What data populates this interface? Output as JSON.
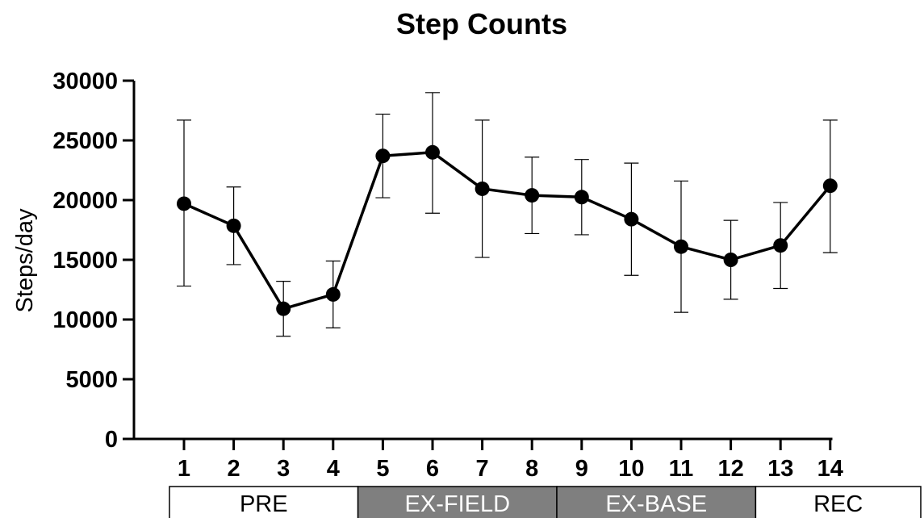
{
  "chart_data": {
    "type": "line",
    "title": "Step Counts",
    "xlabel": "",
    "ylabel": "Steps/day",
    "ylim": [
      0,
      30000
    ],
    "yticks": [
      0,
      5000,
      10000,
      15000,
      20000,
      25000,
      30000
    ],
    "x": [
      1,
      2,
      3,
      4,
      5,
      6,
      7,
      8,
      9,
      10,
      11,
      12,
      13,
      14
    ],
    "series": [
      {
        "values": [
          19700,
          17850,
          10900,
          12100,
          23700,
          24000,
          20950,
          20400,
          20250,
          18400,
          16100,
          15000,
          16200,
          21200
        ],
        "error_upper": [
          26700,
          21100,
          13200,
          14900,
          27200,
          29000,
          26700,
          23600,
          23400,
          23100,
          21600,
          18300,
          19800,
          26700
        ],
        "error_lower": [
          12800,
          14600,
          8600,
          9300,
          20200,
          18900,
          15200,
          17200,
          17100,
          13700,
          10600,
          11700,
          12600,
          15600
        ],
        "color": "#000000"
      }
    ],
    "phases": [
      {
        "label": "PRE",
        "from": 1,
        "to": 4,
        "fill": "#ffffff",
        "text_color": "#000000"
      },
      {
        "label": "EX-FIELD",
        "from": 5,
        "to": 8,
        "fill": "#7f7f7f",
        "text_color": "#ffffff"
      },
      {
        "label": "EX-BASE",
        "from": 9,
        "to": 12,
        "fill": "#7f7f7f",
        "text_color": "#ffffff"
      },
      {
        "label": "REC",
        "from": 13,
        "to": 14,
        "fill": "#ffffff",
        "text_color": "#000000"
      }
    ],
    "grid": false,
    "legend": "none"
  }
}
